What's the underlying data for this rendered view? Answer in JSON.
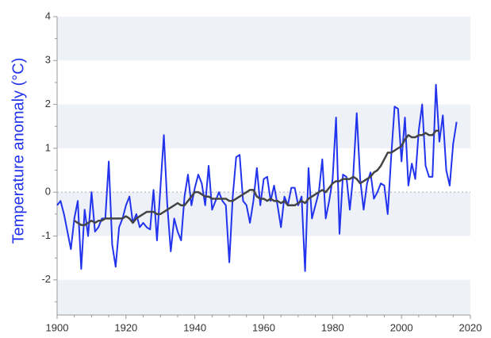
{
  "chart_data": {
    "type": "line",
    "y_label": "Temperature anomaly (°C)",
    "x": [
      1900,
      1901,
      1902,
      1903,
      1904,
      1905,
      1906,
      1907,
      1908,
      1909,
      1910,
      1911,
      1912,
      1913,
      1914,
      1915,
      1916,
      1917,
      1918,
      1919,
      1920,
      1921,
      1922,
      1923,
      1924,
      1925,
      1926,
      1927,
      1928,
      1929,
      1930,
      1931,
      1932,
      1933,
      1934,
      1935,
      1936,
      1937,
      1938,
      1939,
      1940,
      1941,
      1942,
      1943,
      1944,
      1945,
      1946,
      1947,
      1948,
      1949,
      1950,
      1951,
      1952,
      1953,
      1954,
      1955,
      1956,
      1957,
      1958,
      1959,
      1960,
      1961,
      1962,
      1963,
      1964,
      1965,
      1966,
      1967,
      1968,
      1969,
      1970,
      1971,
      1972,
      1973,
      1974,
      1975,
      1976,
      1977,
      1978,
      1979,
      1980,
      1981,
      1982,
      1983,
      1984,
      1985,
      1986,
      1987,
      1988,
      1989,
      1990,
      1991,
      1992,
      1993,
      1994,
      1995,
      1996,
      1997,
      1998,
      1999,
      2000,
      2001,
      2002,
      2003,
      2004,
      2005,
      2006,
      2007,
      2008,
      2009,
      2010,
      2011,
      2012,
      2013,
      2014,
      2015,
      2016
    ],
    "series": [
      {
        "color": "#2233ee",
        "width": 2,
        "values": [
          -0.3,
          -0.2,
          -0.5,
          -0.9,
          -1.3,
          -0.6,
          -0.2,
          -1.75,
          -0.4,
          -1.0,
          0.0,
          -0.9,
          -0.8,
          -0.6,
          -0.6,
          0.7,
          -1.2,
          -1.7,
          -0.8,
          -0.6,
          -0.3,
          -0.1,
          -0.7,
          -0.5,
          -0.8,
          -0.7,
          -0.8,
          -0.85,
          0.05,
          -1.1,
          0.1,
          1.3,
          -0.3,
          -1.35,
          -0.6,
          -0.9,
          -1.1,
          -0.1,
          0.4,
          -0.3,
          0.1,
          0.4,
          0.2,
          -0.3,
          0.6,
          -0.4,
          -0.2,
          0.0,
          -0.2,
          -0.3,
          -1.6,
          -0.1,
          0.8,
          0.85,
          -0.2,
          -0.3,
          -0.7,
          -0.2,
          0.55,
          -0.3,
          0.3,
          0.35,
          -0.2,
          0.15,
          -0.3,
          -0.8,
          -0.1,
          -0.3,
          0.1,
          0.1,
          -0.3,
          -0.1,
          -1.8,
          0.55,
          -0.6,
          -0.3,
          0.0,
          0.75,
          -0.6,
          -0.2,
          0.3,
          1.7,
          -0.95,
          0.4,
          0.35,
          -0.4,
          0.4,
          1.8,
          0.3,
          -0.4,
          0.2,
          0.45,
          -0.15,
          0.0,
          0.2,
          0.15,
          -0.5,
          0.8,
          1.95,
          1.9,
          0.7,
          1.7,
          0.15,
          0.65,
          0.3,
          1.4,
          2.0,
          0.6,
          0.35,
          0.35,
          2.45,
          1.15,
          1.75,
          0.5,
          0.15,
          1.1,
          1.6
        ]
      },
      {
        "color": "#444444",
        "width": 2.5,
        "values": [
          null,
          null,
          null,
          null,
          null,
          -0.65,
          -0.7,
          -0.75,
          -0.75,
          -0.7,
          -0.65,
          -0.7,
          -0.65,
          -0.65,
          -0.6,
          -0.6,
          -0.6,
          -0.6,
          -0.6,
          -0.6,
          -0.55,
          -0.6,
          -0.7,
          -0.6,
          -0.55,
          -0.5,
          -0.45,
          -0.45,
          -0.45,
          -0.5,
          -0.5,
          -0.45,
          -0.4,
          -0.35,
          -0.3,
          -0.25,
          -0.3,
          -0.3,
          -0.2,
          -0.1,
          0.0,
          0.0,
          -0.05,
          -0.1,
          -0.1,
          -0.15,
          -0.15,
          -0.15,
          -0.15,
          -0.15,
          -0.2,
          -0.2,
          -0.15,
          -0.1,
          -0.05,
          0.0,
          0.05,
          0.05,
          -0.1,
          -0.15,
          -0.15,
          -0.2,
          -0.15,
          -0.2,
          -0.2,
          -0.25,
          -0.2,
          -0.3,
          -0.3,
          -0.3,
          -0.25,
          -0.2,
          -0.25,
          -0.15,
          -0.1,
          -0.05,
          0.0,
          0.05,
          0.0,
          0.1,
          0.2,
          0.25,
          0.25,
          0.3,
          0.3,
          0.3,
          0.35,
          0.3,
          0.2,
          0.25,
          0.3,
          0.35,
          0.45,
          0.5,
          0.6,
          0.75,
          0.9,
          0.9,
          0.95,
          1.0,
          1.05,
          1.2,
          1.3,
          1.25,
          1.25,
          1.3,
          1.3,
          1.35,
          1.3,
          1.3,
          1.4,
          1.4,
          null,
          null,
          null,
          null,
          null
        ]
      }
    ],
    "xlim": [
      1900,
      2020
    ],
    "xticks": [
      1900,
      1920,
      1940,
      1960,
      1980,
      2000,
      2020
    ],
    "ylim": [
      -2.8,
      4
    ],
    "yticks": [
      -2,
      -1,
      0,
      1,
      2,
      3,
      4
    ],
    "band_color": "#eef2f8"
  }
}
